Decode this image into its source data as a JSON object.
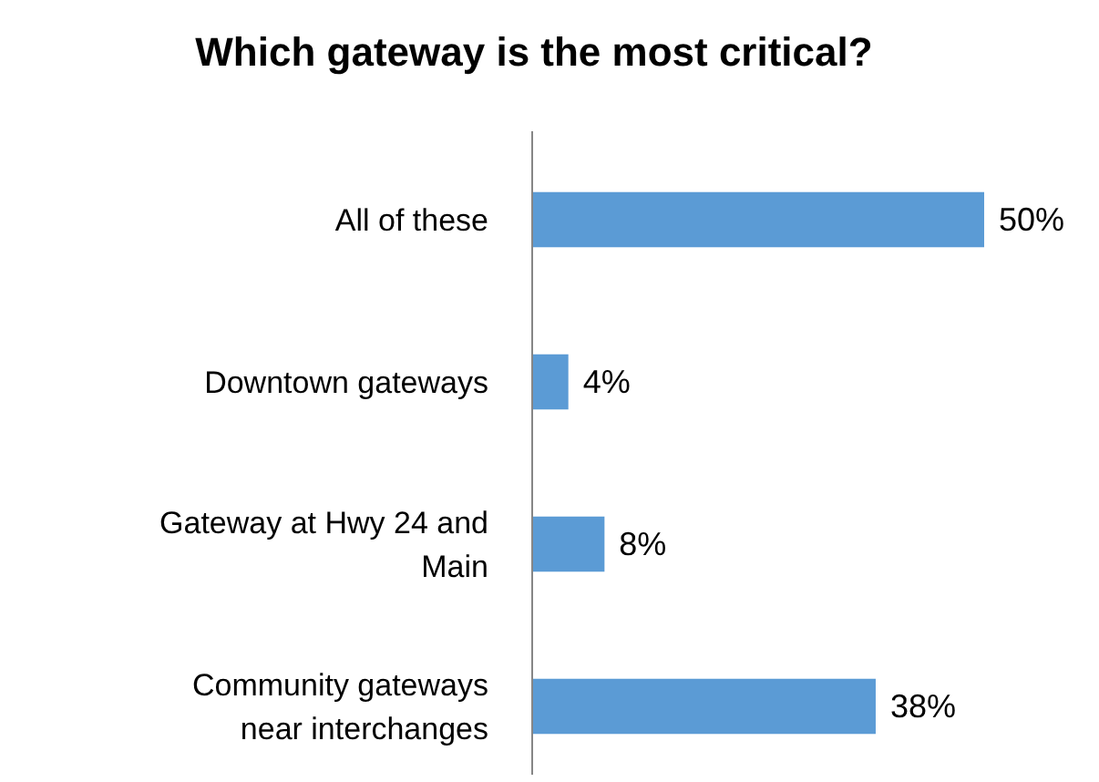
{
  "chart_data": {
    "type": "bar",
    "orientation": "horizontal",
    "title": "Which gateway is the most critical?",
    "categories": [
      "All of these",
      "Downtown gateways",
      "Gateway at Hwy 24 and Main",
      "Community gateways near interchanges"
    ],
    "values": [
      50,
      4,
      8,
      38
    ],
    "value_labels": [
      "50%",
      "4%",
      "8%",
      "38%"
    ],
    "color": "#5b9bd5"
  }
}
